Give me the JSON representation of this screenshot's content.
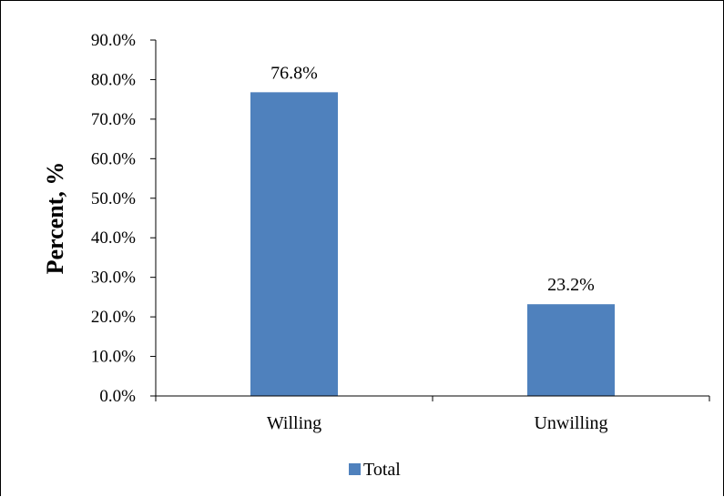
{
  "chart_data": {
    "type": "bar",
    "categories": [
      "Willing",
      "Unwilling"
    ],
    "series": [
      {
        "name": "Total",
        "values": [
          76.8,
          23.2
        ],
        "color": "#4F81BD"
      }
    ],
    "data_labels": [
      "76.8%",
      "23.2%"
    ],
    "yticks": [
      "0.0%",
      "10.0%",
      "20.0%",
      "30.0%",
      "40.0%",
      "50.0%",
      "60.0%",
      "70.0%",
      "80.0%",
      "90.0%"
    ],
    "ylim": [
      0,
      90
    ],
    "ylabel": "Percent, %",
    "xlabel": "",
    "title": "",
    "grid": false,
    "legend": {
      "position": "bottom",
      "entries": [
        "Total"
      ]
    }
  }
}
